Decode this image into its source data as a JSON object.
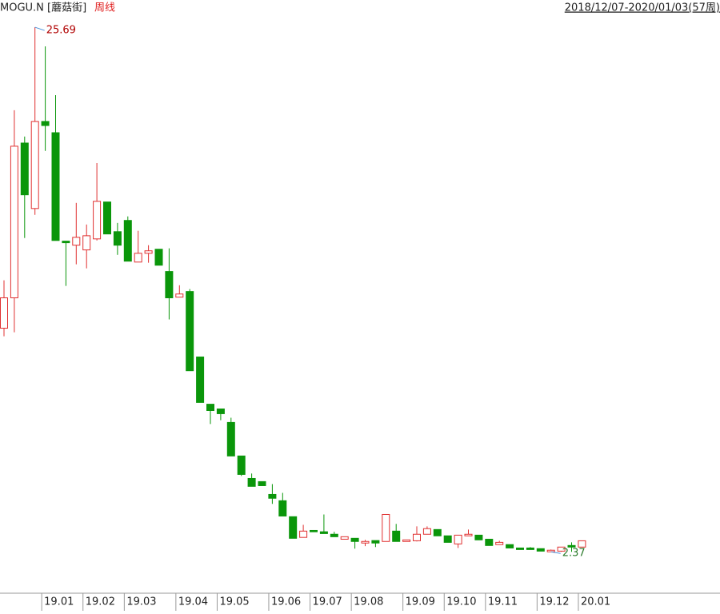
{
  "chart_data": {
    "type": "candlestick",
    "title": "MOGU.N [蘑菇街]",
    "subtitle": "周线",
    "date_range": "2018/12/07-2020/01/03(57周)",
    "ylim": [
      0.6,
      26.9
    ],
    "xticks": [
      {
        "value": 4,
        "label": "19.01"
      },
      {
        "value": 8,
        "label": "19.02"
      },
      {
        "value": 12,
        "label": "19.03"
      },
      {
        "value": 17,
        "label": "19.04"
      },
      {
        "value": 21,
        "label": "19.05"
      },
      {
        "value": 26,
        "label": "19.06"
      },
      {
        "value": 30,
        "label": "19.07"
      },
      {
        "value": 34,
        "label": "19.08"
      },
      {
        "value": 39,
        "label": "19.09"
      },
      {
        "value": 43,
        "label": "19.10"
      },
      {
        "value": 47,
        "label": "19.11"
      },
      {
        "value": 52,
        "label": "19.12"
      },
      {
        "value": 56,
        "label": "20.01"
      }
    ],
    "up_color": "#e03030",
    "down_color": "#0a960a",
    "open": [
      12.31,
      13.66,
      20.54,
      17.63,
      21.5,
      21.0,
      16.18,
      16.0,
      15.79,
      16.28,
      17.92,
      16.6,
      17.1,
      15.25,
      15.64,
      15.82,
      14.83,
      13.69,
      13.94,
      11.03,
      8.93,
      8.72,
      8.12,
      6.63,
      5.63,
      5.49,
      4.92,
      4.64,
      3.93,
      3.01,
      3.32,
      3.26,
      3.15,
      2.93,
      2.97,
      2.76,
      2.87,
      2.83,
      3.29,
      2.83,
      2.86,
      3.15,
      3.36,
      3.08,
      2.72,
      3.08,
      3.11,
      2.93,
      2.69,
      2.69,
      2.54,
      2.54,
      2.51,
      2.37,
      2.4,
      2.65,
      2.58
    ],
    "high": [
      14.44,
      22.0,
      20.83,
      25.69,
      24.84,
      22.67,
      16.18,
      17.88,
      16.92,
      19.65,
      17.92,
      16.99,
      17.28,
      16.64,
      16.0,
      15.82,
      15.86,
      14.22,
      14.05,
      11.03,
      8.93,
      8.72,
      8.33,
      6.63,
      5.85,
      5.49,
      5.38,
      4.99,
      3.93,
      3.57,
      3.32,
      4.03,
      3.26,
      3.04,
      2.97,
      2.9,
      2.87,
      4.03,
      3.61,
      2.9,
      3.5,
      3.5,
      3.36,
      3.08,
      3.11,
      3.36,
      3.11,
      2.93,
      2.86,
      2.69,
      2.54,
      2.58,
      2.51,
      2.47,
      2.58,
      2.79,
      2.86
    ],
    "low": [
      11.95,
      12.13,
      16.32,
      17.35,
      20.19,
      16.21,
      14.19,
      15.15,
      14.97,
      16.21,
      16.5,
      15.57,
      15.29,
      15.25,
      15.22,
      15.11,
      12.7,
      13.69,
      10.42,
      9.01,
      8.05,
      8.22,
      6.63,
      5.74,
      5.28,
      5.31,
      4.5,
      3.96,
      2.97,
      3.01,
      3.26,
      3.18,
      3.04,
      2.93,
      2.51,
      2.62,
      2.58,
      2.83,
      2.83,
      2.83,
      2.83,
      3.15,
      3.08,
      2.79,
      2.54,
      3.08,
      2.9,
      2.65,
      2.69,
      2.54,
      2.47,
      2.47,
      2.4,
      2.37,
      2.37,
      2.37,
      2.58
    ],
    "close": [
      13.66,
      20.4,
      18.24,
      21.5,
      21.32,
      16.21,
      16.11,
      16.35,
      16.42,
      17.95,
      16.5,
      16.0,
      15.29,
      15.64,
      15.75,
      15.11,
      13.66,
      13.83,
      10.42,
      9.01,
      8.65,
      8.51,
      6.63,
      5.81,
      5.28,
      5.31,
      4.75,
      3.96,
      2.97,
      3.29,
      3.26,
      3.18,
      3.04,
      3.04,
      2.83,
      2.83,
      2.76,
      4.03,
      2.83,
      2.9,
      3.15,
      3.4,
      3.08,
      2.79,
      3.11,
      3.15,
      2.9,
      2.65,
      2.79,
      2.54,
      2.47,
      2.47,
      2.4,
      2.44,
      2.58,
      2.58,
      2.86
    ],
    "annotations": [
      {
        "index": 3,
        "value": 25.69,
        "label": "25.69"
      },
      {
        "index": 53,
        "value": 2.37,
        "label": "2.37"
      }
    ]
  }
}
